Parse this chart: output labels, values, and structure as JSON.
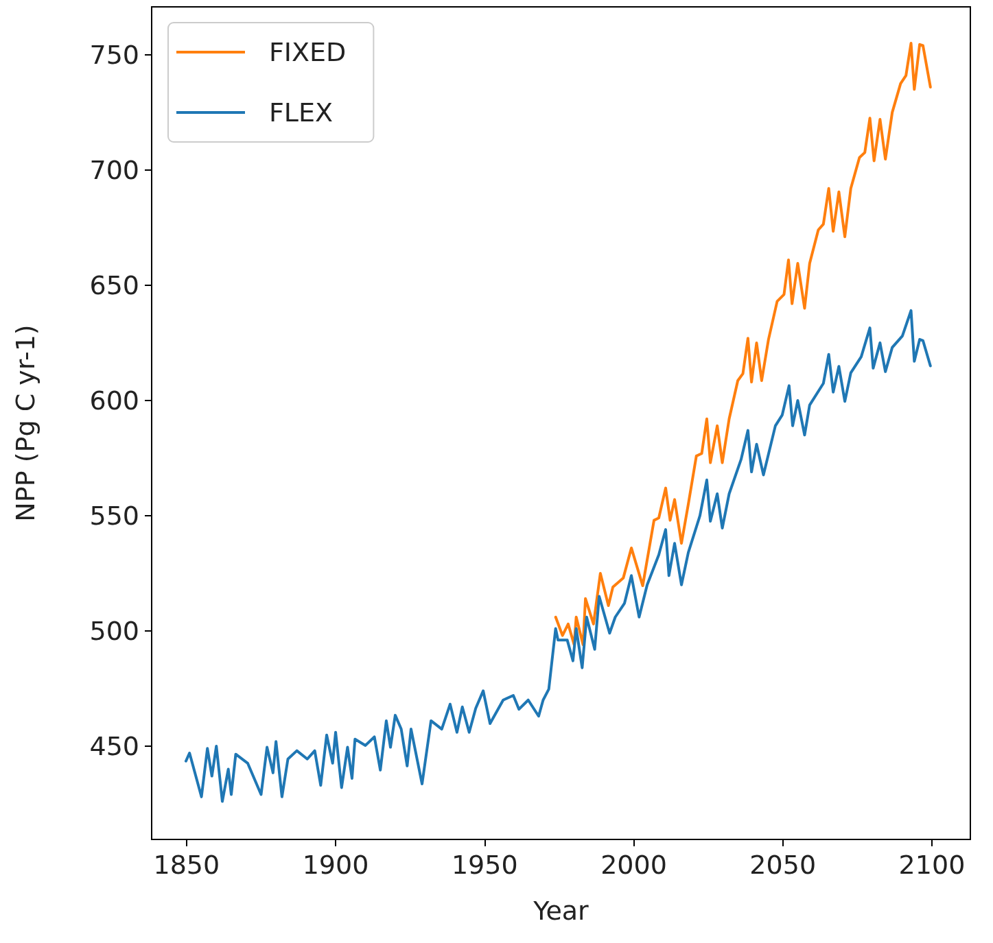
{
  "chart_data": {
    "type": "line",
    "xlabel": "Year",
    "ylabel": "NPP (Pg C yr-1)",
    "xlim": [
      1838.3,
      2112.9
    ],
    "ylim": [
      409.5,
      770.8
    ],
    "xticks": [
      1850,
      1900,
      1950,
      2000,
      2050,
      2100
    ],
    "yticks": [
      450,
      500,
      550,
      600,
      650,
      700,
      750
    ],
    "legend": "top left",
    "grid": false,
    "marker": "none",
    "line_style": "solid",
    "series": [
      {
        "name": "FIXED",
        "color": "#ff7f0e",
        "x": [
          1973.8,
          1976.1,
          1978,
          1980,
          1980.7,
          1983,
          1983.8,
          1986.5,
          1988.8,
          1991.5,
          1993,
          1996.5,
          1999.2,
          2003,
          2006.8,
          2008.4,
          2010.7,
          2012.2,
          2013.7,
          2016,
          2018.3,
          2021,
          2022.8,
          2024.5,
          2025.7,
          2028,
          2029.7,
          2032,
          2034.9,
          2036.6,
          2038.3,
          2039.5,
          2041.2,
          2042.9,
          2045.2,
          2048.1,
          2050.4,
          2051.9,
          2053.1,
          2055,
          2057.3,
          2059,
          2061.9,
          2063.6,
          2065.4,
          2066.9,
          2068.8,
          2070.8,
          2072.8,
          2075.7,
          2077.5,
          2079.2,
          2080.6,
          2082.6,
          2084.4,
          2086.7,
          2089.5,
          2091.3,
          2093,
          2094.1,
          2095.9,
          2097,
          2099.5
        ],
        "values": [
          506,
          498,
          503,
          494,
          506,
          494,
          514,
          503,
          525,
          511,
          519,
          523,
          536,
          519.6,
          548,
          549,
          562,
          548,
          557,
          538,
          555,
          575.9,
          577,
          592,
          573,
          589,
          573,
          592,
          608.6,
          611.6,
          627,
          608,
          625,
          608.6,
          626.5,
          643,
          646,
          661,
          642,
          659.5,
          640,
          659.5,
          674,
          676.5,
          692,
          673.4,
          690.5,
          671,
          692,
          705.4,
          707.6,
          722.5,
          704,
          722,
          704.7,
          725,
          737.5,
          741,
          755,
          735,
          754.5,
          754,
          736
        ]
      },
      {
        "name": "FLEX",
        "color": "#1f77b4",
        "x": [
          1849.8,
          1851,
          1855,
          1857,
          1858.5,
          1860,
          1862,
          1864,
          1865,
          1866.5,
          1870.5,
          1875,
          1877,
          1879,
          1880,
          1882,
          1884,
          1887,
          1890.5,
          1893,
          1895,
          1897,
          1899,
          1900,
          1902,
          1904,
          1905.5,
          1906.5,
          1910,
          1913,
          1915,
          1917,
          1918.4,
          1920,
          1922,
          1924,
          1925.3,
          1929,
          1932,
          1935.6,
          1938.4,
          1940.7,
          1942.5,
          1944.8,
          1947,
          1949.5,
          1951.8,
          1956.2,
          1959.6,
          1961.5,
          1964.6,
          1968.1,
          1969.6,
          1971.5,
          1973.8,
          1974.6,
          1977.7,
          1979.6,
          1980.7,
          1982.7,
          1984.2,
          1986.9,
          1988.4,
          1991.9,
          1993.8,
          1996.9,
          1999.2,
          2001.8,
          2004.5,
          2008.4,
          2010.7,
          2011.8,
          2013.7,
          2016,
          2018.3,
          2022.2,
          2024.5,
          2025.7,
          2028,
          2029.7,
          2032,
          2036,
          2038.3,
          2039.5,
          2041.2,
          2043.5,
          2047.5,
          2049.8,
          2052.1,
          2053.3,
          2055,
          2057.3,
          2059,
          2063.6,
          2065.4,
          2066.9,
          2068.8,
          2070.8,
          2072.8,
          2076.3,
          2079.2,
          2080.3,
          2082.6,
          2084.4,
          2086.7,
          2090.1,
          2093,
          2094.1,
          2095.9,
          2097,
          2099.5
        ],
        "values": [
          443.5,
          447,
          428,
          449,
          437,
          450,
          426,
          440,
          429,
          446.5,
          442.6,
          429,
          449.5,
          438.4,
          452,
          428,
          444.4,
          448,
          444.4,
          448,
          433,
          454.8,
          442.6,
          456,
          432,
          449.5,
          436,
          453,
          450.3,
          454,
          439.6,
          461,
          449.5,
          463.4,
          457.4,
          441.4,
          457.4,
          433.6,
          461,
          457.4,
          468.2,
          456,
          467,
          456,
          466.4,
          474,
          459.8,
          470,
          472,
          466,
          470,
          463,
          470,
          474.7,
          501,
          496,
          496,
          487,
          501,
          484,
          506,
          492,
          515,
          499,
          506,
          512,
          524,
          506,
          520,
          533,
          544,
          524,
          538,
          520,
          534,
          550,
          565.5,
          547.6,
          559.5,
          544.6,
          559.5,
          574.4,
          587,
          569,
          581,
          567.7,
          589,
          593.7,
          606.4,
          589,
          600,
          585,
          598,
          607.4,
          620,
          603.6,
          614.8,
          599.6,
          612,
          619,
          631.5,
          614,
          625,
          612.5,
          623,
          628,
          639,
          617,
          626.5,
          626,
          615
        ]
      }
    ]
  }
}
